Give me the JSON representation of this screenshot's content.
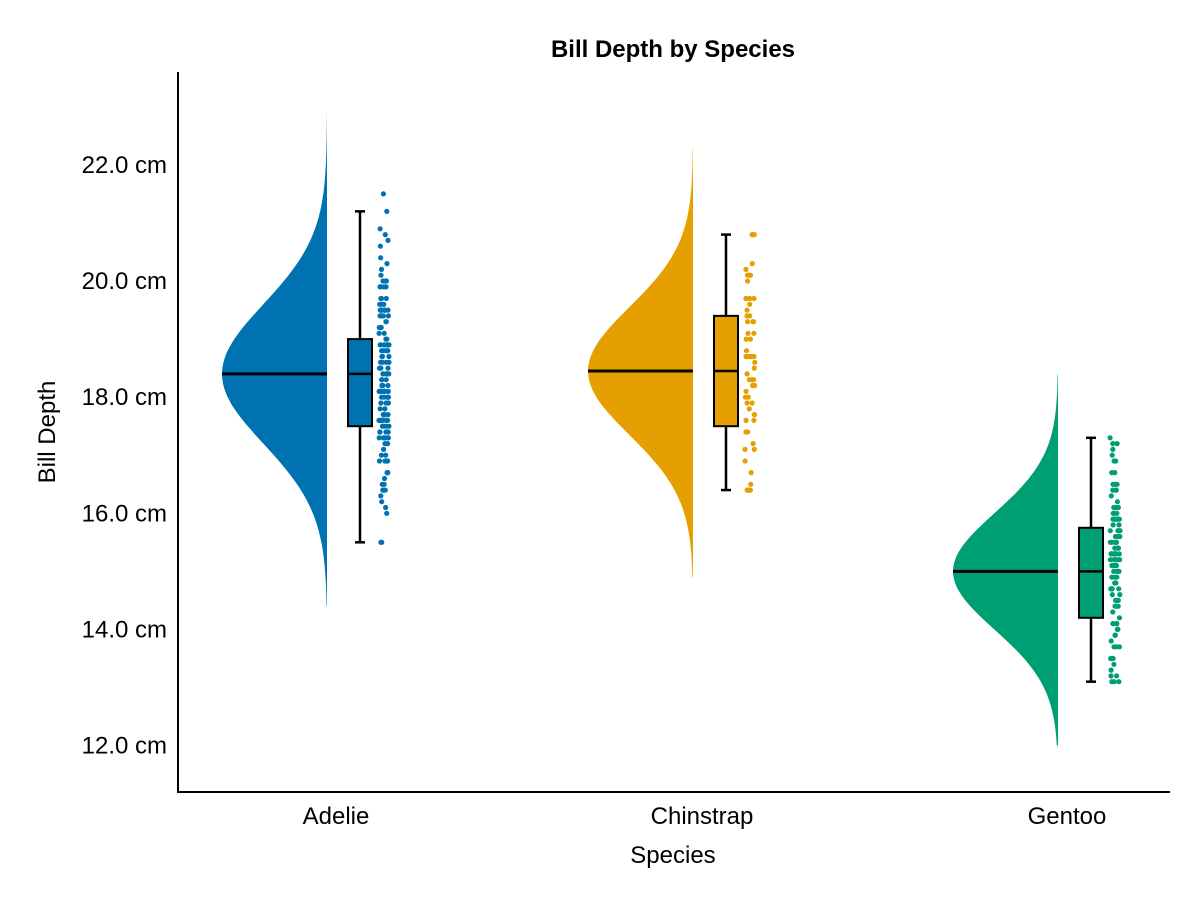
{
  "chart_data": {
    "type": "raincloud",
    "title": "Bill Depth by Species",
    "xlabel": "Species",
    "ylabel": "Bill Depth",
    "ylim": [
      11.2,
      23.6
    ],
    "y_ticks": [
      12.0,
      14.0,
      16.0,
      18.0,
      20.0,
      22.0
    ],
    "y_tick_suffix": " cm",
    "categories": [
      "Adelie",
      "Chinstrap",
      "Gentoo"
    ],
    "series": [
      {
        "name": "Adelie",
        "color": "#0072B2",
        "density": {
          "mean": 18.4,
          "sd": 1.2,
          "min": 14.4,
          "max": 22.9
        },
        "box": {
          "whisker_low": 15.5,
          "q1": 17.5,
          "median": 18.4,
          "q3": 19.0,
          "whisker_high": 21.2
        },
        "points_min": 15.5,
        "points_max": 21.5,
        "n_points": 150
      },
      {
        "name": "Chinstrap",
        "color": "#E69F00",
        "density": {
          "mean": 18.45,
          "sd": 1.1,
          "min": 14.9,
          "max": 22.3
        },
        "box": {
          "whisker_low": 16.4,
          "q1": 17.5,
          "median": 18.45,
          "q3": 19.4,
          "whisker_high": 20.8
        },
        "points_min": 16.4,
        "points_max": 20.8,
        "n_points": 68
      },
      {
        "name": "Gentoo",
        "color": "#009E73",
        "density": {
          "mean": 15.0,
          "sd": 1.0,
          "min": 12.0,
          "max": 18.4
        },
        "box": {
          "whisker_low": 13.1,
          "q1": 14.2,
          "median": 15.0,
          "q3": 15.75,
          "whisker_high": 17.3
        },
        "points_min": 13.1,
        "points_max": 17.3,
        "n_points": 123
      }
    ]
  }
}
